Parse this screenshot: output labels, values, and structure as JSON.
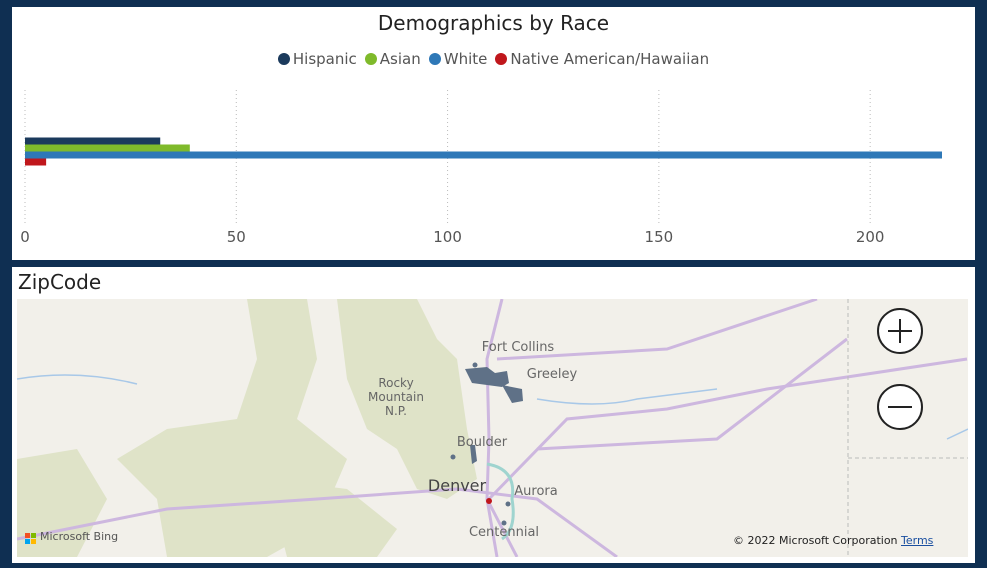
{
  "chart_data": {
    "type": "bar",
    "orientation": "horizontal",
    "title": "Demographics by Race",
    "categories": [
      null
    ],
    "series": [
      {
        "name": "Hispanic",
        "color": "#1b3a5c",
        "values": [
          32
        ]
      },
      {
        "name": "Asian",
        "color": "#7fba2b",
        "values": [
          39
        ]
      },
      {
        "name": "White",
        "color": "#2e78b7",
        "values": [
          217
        ]
      },
      {
        "name": "Native American/Hawaiian",
        "color": "#c0171c",
        "values": [
          5
        ]
      }
    ],
    "xlim": [
      0,
      217
    ],
    "xticks": [
      0,
      50,
      100,
      150,
      200
    ],
    "grid": true,
    "legend": "top"
  },
  "map": {
    "title": "ZipCode",
    "places": [
      "Fort Collins",
      "Greeley",
      "Rocky Mountain N.P.",
      "Boulder",
      "Denver",
      "Aurora",
      "Centennial"
    ],
    "attribution": "Microsoft Bing",
    "copyright": "© 2022 Microsoft Corporation",
    "terms": "Terms"
  }
}
